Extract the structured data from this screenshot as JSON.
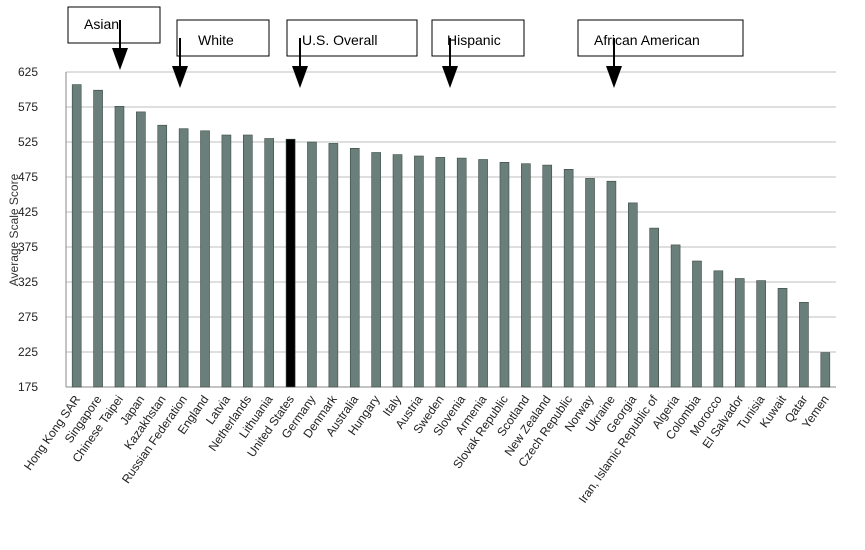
{
  "chart_data": {
    "type": "bar",
    "title": "",
    "xlabel": "",
    "ylabel": "Average Scale Score",
    "ylim": [
      175,
      625
    ],
    "yticks": [
      175,
      225,
      275,
      325,
      375,
      425,
      475,
      525,
      575,
      625
    ],
    "grid": true,
    "bar_color": "#6b7f7a",
    "highlight_color": "#000000",
    "highlight_category": "United States",
    "categories": [
      "Hong Kong SAR",
      "Singapore",
      "Chinese Taipei",
      "Japan",
      "Kazakhstan",
      "Russian Federation",
      "England",
      "Latvia",
      "Netherlands",
      "Lithuania",
      "United States",
      "Germany",
      "Denmark",
      "Australia",
      "Hungary",
      "Italy",
      "Austria",
      "Sweden",
      "Slovenia",
      "Armenia",
      "Slovak Republic",
      "Scotland",
      "New Zealand",
      "Czech Republic",
      "Norway",
      "Ukraine",
      "Georgia",
      "Iran, Islamic Republic of",
      "Algeria",
      "Colombia",
      "Morocco",
      "El Salvador",
      "Tunisia",
      "Kuwait",
      "Qatar",
      "Yemen"
    ],
    "values": [
      607,
      599,
      576,
      568,
      549,
      544,
      541,
      535,
      535,
      530,
      529,
      525,
      523,
      516,
      510,
      507,
      505,
      503,
      502,
      500,
      496,
      494,
      492,
      486,
      473,
      469,
      438,
      402,
      378,
      355,
      341,
      330,
      327,
      316,
      296,
      224
    ],
    "annotations": [
      {
        "label": "Asian",
        "value": 576
      },
      {
        "label": "White",
        "value": 539
      },
      {
        "label": "U.S. Overall",
        "value": 529
      },
      {
        "label": "Hispanic",
        "value": 504
      },
      {
        "label": "African  American",
        "value": 473
      }
    ]
  }
}
